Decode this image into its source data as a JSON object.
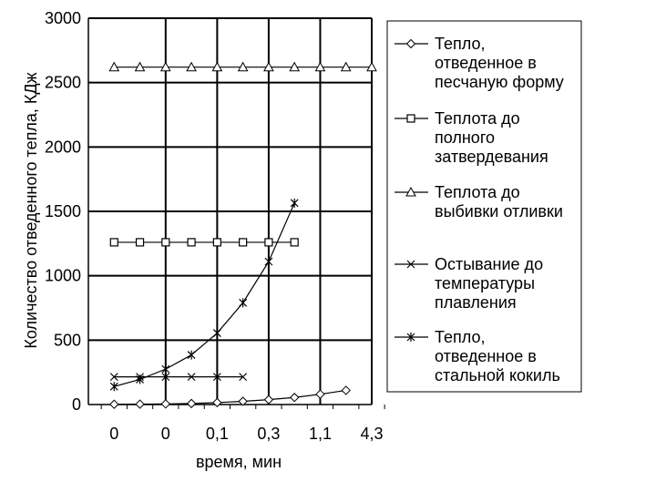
{
  "chart_data": {
    "type": "line",
    "title": "",
    "xlabel": "время, мин",
    "ylabel": "Количество отведенного тепла, КДж",
    "ylim": [
      0,
      3000
    ],
    "y_ticks": [
      "0",
      "500",
      "1000",
      "1500",
      "2000",
      "2500",
      "3000"
    ],
    "x_tick_labels": [
      "0",
      "0",
      "0,1",
      "0,3",
      "1,1",
      "4,3"
    ],
    "grid": "horizontal and vertical",
    "legend_position": "right",
    "n_points": 11,
    "series": [
      {
        "name": "Тепло, отведенное в песчаную форму",
        "legend_lines": [
          "Тепло,",
          "отведенное в",
          "песчаную форму"
        ],
        "marker": "diamond",
        "x": [
          0,
          1,
          2,
          3,
          4,
          5,
          6,
          7,
          8,
          9
        ],
        "values": [
          2,
          3,
          5,
          8,
          15,
          25,
          38,
          55,
          80,
          110
        ]
      },
      {
        "name": "Теплота до полного затвердевания",
        "legend_lines": [
          "Теплота до",
          "полного",
          "затвердевания"
        ],
        "marker": "square",
        "x": [
          0,
          1,
          2,
          3,
          4,
          5,
          6,
          7
        ],
        "values": [
          1260,
          1260,
          1260,
          1260,
          1260,
          1260,
          1260,
          1260
        ]
      },
      {
        "name": "Теплота до выбивки отливки",
        "legend_lines": [
          "Теплота до",
          "выбивки отливки"
        ],
        "marker": "triangle",
        "x": [
          0,
          1,
          2,
          3,
          4,
          5,
          6,
          7,
          8,
          9,
          10
        ],
        "values": [
          2620,
          2620,
          2620,
          2620,
          2620,
          2620,
          2620,
          2620,
          2620,
          2620,
          2620
        ]
      },
      {
        "name": "Остывание до температуры плавления",
        "legend_lines": [
          "Остывание до",
          "температуры",
          "плавления"
        ],
        "marker": "x",
        "x": [
          0,
          1,
          2,
          3,
          4,
          5
        ],
        "values": [
          215,
          215,
          215,
          215,
          215,
          215
        ]
      },
      {
        "name": "Тепло, отведенное в стальной кокиль",
        "legend_lines": [
          "Тепло,",
          "отведенное в",
          "стальной кокиль"
        ],
        "marker": "star",
        "x": [
          0,
          1,
          2,
          3,
          4,
          5,
          6,
          7
        ],
        "values": [
          140,
          195,
          275,
          385,
          555,
          790,
          1110,
          1565
        ]
      }
    ]
  }
}
